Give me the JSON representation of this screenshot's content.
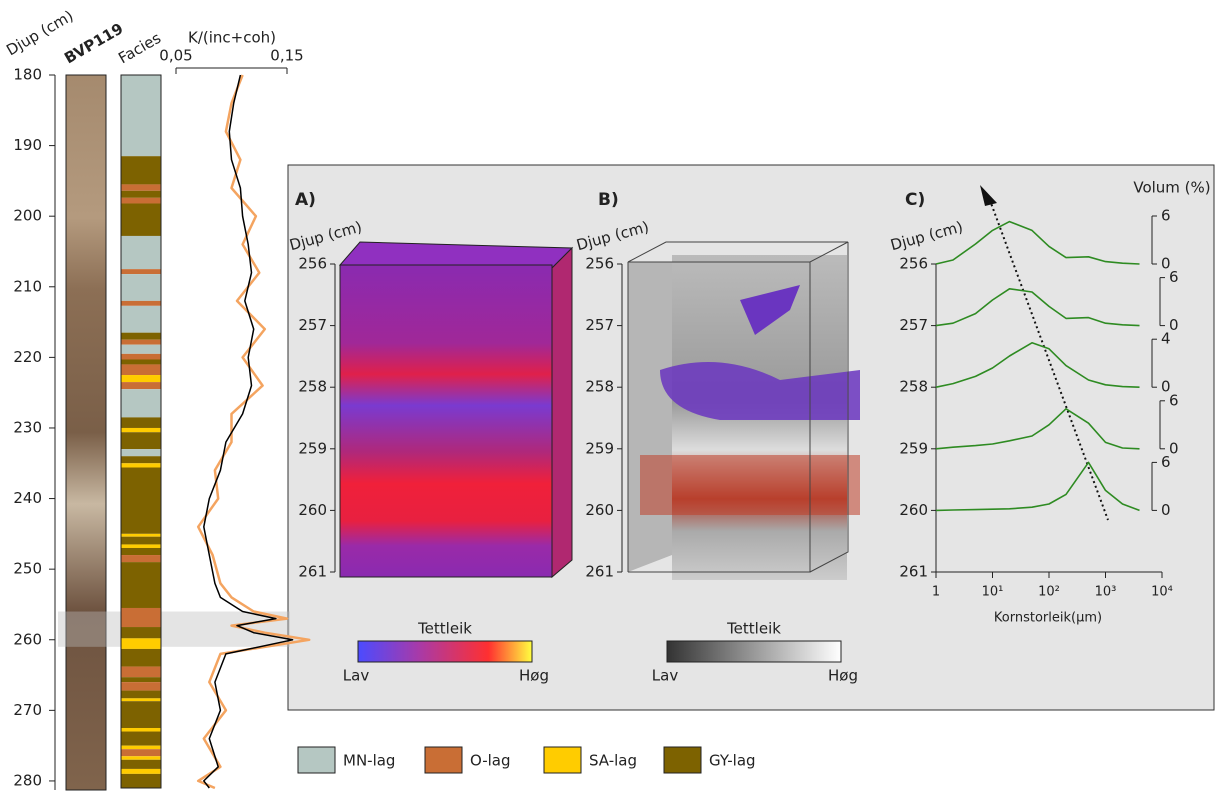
{
  "depth_axis": {
    "label": "Djup (cm)",
    "ylim": [
      180,
      281
    ],
    "yticks": [
      180,
      190,
      200,
      210,
      220,
      230,
      240,
      250,
      260,
      270,
      280
    ]
  },
  "core": {
    "label": "BVP119"
  },
  "facies": {
    "label": "Facies",
    "layers": [
      {
        "top": 180,
        "bottom": 191.5,
        "type": "MN-lag"
      },
      {
        "top": 191.5,
        "bottom": 195.5,
        "type": "GY-lag"
      },
      {
        "top": 195.5,
        "bottom": 196.4,
        "type": "O-lag"
      },
      {
        "top": 196.4,
        "bottom": 197.4,
        "type": "GY-lag"
      },
      {
        "top": 197.4,
        "bottom": 198.2,
        "type": "O-lag"
      },
      {
        "top": 198.2,
        "bottom": 202.8,
        "type": "GY-lag"
      },
      {
        "top": 202.8,
        "bottom": 207.5,
        "type": "MN-lag"
      },
      {
        "top": 207.5,
        "bottom": 208.2,
        "type": "O-lag"
      },
      {
        "top": 208.2,
        "bottom": 212,
        "type": "MN-lag"
      },
      {
        "top": 212,
        "bottom": 212.7,
        "type": "O-lag"
      },
      {
        "top": 212.7,
        "bottom": 216.5,
        "type": "MN-lag"
      },
      {
        "top": 216.5,
        "bottom": 217.5,
        "type": "GY-lag"
      },
      {
        "top": 217.5,
        "bottom": 218.2,
        "type": "O-lag"
      },
      {
        "top": 218.2,
        "bottom": 219.5,
        "type": "MN-lag"
      },
      {
        "top": 219.5,
        "bottom": 220.3,
        "type": "O-lag"
      },
      {
        "top": 220.3,
        "bottom": 221,
        "type": "GY-lag"
      },
      {
        "top": 221,
        "bottom": 222.5,
        "type": "O-lag"
      },
      {
        "top": 222.5,
        "bottom": 223.5,
        "type": "SA-lag"
      },
      {
        "top": 223.5,
        "bottom": 224.5,
        "type": "O-lag"
      },
      {
        "top": 224.5,
        "bottom": 228.5,
        "type": "MN-lag"
      },
      {
        "top": 228.5,
        "bottom": 230,
        "type": "GY-lag"
      },
      {
        "top": 230,
        "bottom": 230.6,
        "type": "SA-lag"
      },
      {
        "top": 230.6,
        "bottom": 233,
        "type": "GY-lag"
      },
      {
        "top": 233,
        "bottom": 234,
        "type": "MN-lag"
      },
      {
        "top": 234,
        "bottom": 235,
        "type": "GY-lag"
      },
      {
        "top": 235,
        "bottom": 235.6,
        "type": "SA-lag"
      },
      {
        "top": 235.6,
        "bottom": 245,
        "type": "GY-lag"
      },
      {
        "top": 245,
        "bottom": 245.4,
        "type": "SA-lag"
      },
      {
        "top": 245.4,
        "bottom": 246.5,
        "type": "GY-lag"
      },
      {
        "top": 246.5,
        "bottom": 247,
        "type": "SA-lag"
      },
      {
        "top": 247,
        "bottom": 248,
        "type": "GY-lag"
      },
      {
        "top": 248,
        "bottom": 249,
        "type": "O-lag"
      },
      {
        "top": 249,
        "bottom": 255.5,
        "type": "GY-lag"
      },
      {
        "top": 255.5,
        "bottom": 258.2,
        "type": "O-lag"
      },
      {
        "top": 258.2,
        "bottom": 259.8,
        "type": "GY-lag"
      },
      {
        "top": 259.8,
        "bottom": 261.3,
        "type": "SA-lag"
      },
      {
        "top": 261.3,
        "bottom": 263.8,
        "type": "GY-lag"
      },
      {
        "top": 263.8,
        "bottom": 265.3,
        "type": "O-lag"
      },
      {
        "top": 265.3,
        "bottom": 266,
        "type": "GY-lag"
      },
      {
        "top": 266,
        "bottom": 267.2,
        "type": "O-lag"
      },
      {
        "top": 267.2,
        "bottom": 268.3,
        "type": "GY-lag"
      },
      {
        "top": 268.3,
        "bottom": 268.7,
        "type": "SA-lag"
      },
      {
        "top": 268.7,
        "bottom": 272.5,
        "type": "GY-lag"
      },
      {
        "top": 272.5,
        "bottom": 273,
        "type": "SA-lag"
      },
      {
        "top": 273,
        "bottom": 275,
        "type": "GY-lag"
      },
      {
        "top": 275,
        "bottom": 275.5,
        "type": "SA-lag"
      },
      {
        "top": 275.5,
        "bottom": 276.5,
        "type": "O-lag"
      },
      {
        "top": 276.5,
        "bottom": 277,
        "type": "SA-lag"
      },
      {
        "top": 277,
        "bottom": 278.3,
        "type": "GY-lag"
      },
      {
        "top": 278.3,
        "bottom": 279,
        "type": "SA-lag"
      },
      {
        "top": 279,
        "bottom": 281,
        "type": "GY-lag"
      }
    ]
  },
  "legend": [
    {
      "name": "MN-lag",
      "color": "#b5c7c2"
    },
    {
      "name": "O-lag",
      "color": "#c96e35"
    },
    {
      "name": "SA-lag",
      "color": "#ffcc00"
    },
    {
      "name": "GY-lag",
      "color": "#7d6200"
    }
  ],
  "highlight": [
    256,
    261
  ],
  "k_curve": {
    "label": "K/(inc+coh)",
    "xlim": [
      0.05,
      0.15
    ],
    "xticks": [
      {
        "value": 0.05,
        "label": "0,05"
      },
      {
        "value": 0.15,
        "label": "0,15"
      }
    ],
    "depths": [
      180,
      184,
      188,
      192,
      196,
      200,
      204,
      208,
      212,
      216,
      220,
      224,
      228,
      232,
      236,
      240,
      244,
      248,
      252,
      254,
      256,
      257,
      258,
      259,
      260,
      262,
      266,
      270,
      274,
      278,
      280,
      281
    ],
    "series": [
      {
        "color": "#f4a460",
        "values": [
          0.11,
          0.1,
          0.095,
          0.108,
          0.1,
          0.122,
          0.11,
          0.125,
          0.105,
          0.13,
          0.11,
          0.128,
          0.1,
          0.1,
          0.085,
          0.088,
          0.07,
          0.083,
          0.09,
          0.1,
          0.12,
          0.15,
          0.1,
          0.13,
          0.17,
          0.09,
          0.08,
          0.095,
          0.075,
          0.09,
          0.07,
          0.085
        ]
      },
      {
        "color": "#000000",
        "values": [
          0.108,
          0.102,
          0.098,
          0.1,
          0.108,
          0.11,
          0.115,
          0.118,
          0.112,
          0.12,
          0.115,
          0.118,
          0.11,
          0.095,
          0.09,
          0.08,
          0.075,
          0.08,
          0.085,
          0.09,
          0.11,
          0.14,
          0.105,
          0.12,
          0.155,
          0.095,
          0.085,
          0.09,
          0.08,
          0.088,
          0.075,
          0.08
        ]
      }
    ]
  },
  "panel_a": {
    "label": "A)",
    "depth_label": "Djup (cm)",
    "yticks": [
      256,
      257,
      258,
      259,
      260,
      261
    ],
    "colorbar": {
      "title": "Tettleik",
      "low": "Lav",
      "high": "Høg"
    }
  },
  "panel_b": {
    "label": "B)",
    "depth_label": "Djup (cm)",
    "yticks": [
      256,
      257,
      258,
      259,
      260,
      261
    ],
    "colorbar": {
      "title": "Tettleik",
      "low": "Lav",
      "high": "Høg"
    }
  },
  "panel_c": {
    "label": "C)",
    "depth_label": "Djup (cm)",
    "yticks": [
      256,
      257,
      258,
      259,
      260,
      261
    ],
    "x_label": "Kornstorleik(µm)",
    "volume_label": "Volum (%)",
    "xticks": [
      1,
      {
        "value": 10,
        "label": "10¹"
      },
      {
        "value": 100,
        "label": "10²"
      },
      {
        "value": 1000,
        "label": "10³"
      },
      {
        "value": 10000,
        "label": "10⁴"
      }
    ],
    "sizes": [
      1,
      2,
      5,
      10,
      20,
      50,
      100,
      200,
      500,
      1000,
      2000,
      4000
    ],
    "curves": [
      {
        "depth": 256,
        "yticks": [
          0,
          6
        ],
        "values": [
          0,
          0.5,
          2.5,
          4.2,
          5.3,
          4.2,
          2.2,
          0.8,
          0.9,
          0.3,
          0.1,
          0
        ]
      },
      {
        "depth": 257,
        "yticks": [
          0,
          6
        ],
        "values": [
          0,
          0.3,
          1.5,
          3.2,
          4.6,
          4.2,
          2.4,
          0.9,
          1,
          0.3,
          0.1,
          0
        ]
      },
      {
        "depth": 258,
        "yticks": [
          0,
          4
        ],
        "values": [
          0,
          0.3,
          0.9,
          1.6,
          2.6,
          3.7,
          3.2,
          1.8,
          0.6,
          0.2,
          0.05,
          0
        ]
      },
      {
        "depth": 259,
        "yticks": [
          0,
          6
        ],
        "values": [
          0,
          0.2,
          0.4,
          0.6,
          1,
          1.6,
          3,
          5,
          3.2,
          0.8,
          0.1,
          0
        ]
      },
      {
        "depth": 260,
        "yticks": [
          0,
          6
        ],
        "values": [
          0,
          0.05,
          0.1,
          0.15,
          0.2,
          0.4,
          0.8,
          2,
          6,
          2.5,
          0.8,
          0
        ]
      }
    ]
  }
}
